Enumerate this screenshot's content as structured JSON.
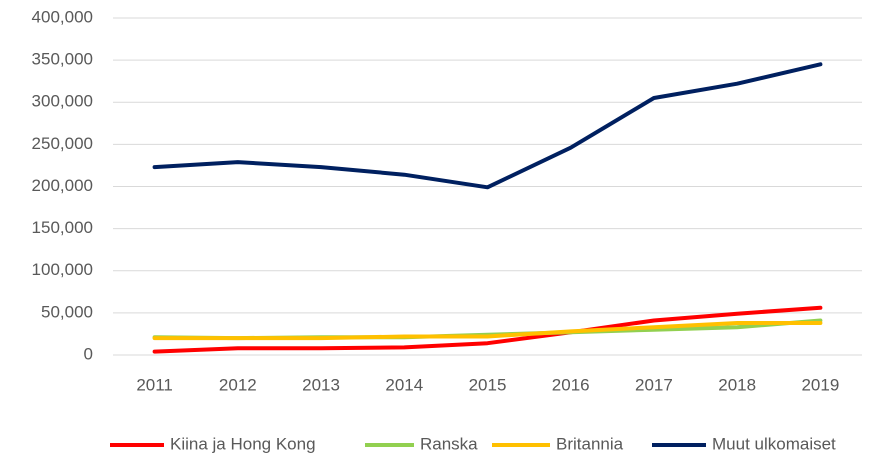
{
  "chart_data": {
    "type": "line",
    "categories": [
      "2011",
      "2012",
      "2013",
      "2014",
      "2015",
      "2016",
      "2017",
      "2018",
      "2019"
    ],
    "series": [
      {
        "name": "Kiina ja Hong Kong",
        "color": "#ff0000",
        "values": [
          4000,
          8000,
          8000,
          9000,
          14000,
          27000,
          41000,
          49000,
          56000
        ]
      },
      {
        "name": "Ranska",
        "color": "#92d050",
        "values": [
          21000,
          20000,
          21000,
          21000,
          24000,
          27000,
          30000,
          33000,
          41000
        ]
      },
      {
        "name": "Britannia",
        "color": "#ffc000",
        "values": [
          20000,
          20000,
          20000,
          22000,
          22000,
          28000,
          33000,
          38000,
          38000
        ]
      },
      {
        "name": "Muut ulkomaiset",
        "color": "#002060",
        "values": [
          223000,
          229000,
          223000,
          214000,
          199000,
          246000,
          305000,
          322000,
          345000
        ]
      }
    ],
    "ylim": [
      0,
      400000
    ],
    "yticks": [
      0,
      {
        "value": 50000,
        "label": "50,000"
      },
      {
        "value": 100000,
        "label": "100,000"
      },
      {
        "value": 150000,
        "label": "150,000"
      },
      {
        "value": 200000,
        "label": "200,000"
      },
      {
        "value": 250000,
        "label": "250,000"
      },
      {
        "value": 300000,
        "label": "300,000"
      },
      {
        "value": 350000,
        "label": "350,000"
      },
      {
        "value": 400000,
        "label": "400,000"
      }
    ],
    "grid": true,
    "legend": "bottom"
  }
}
